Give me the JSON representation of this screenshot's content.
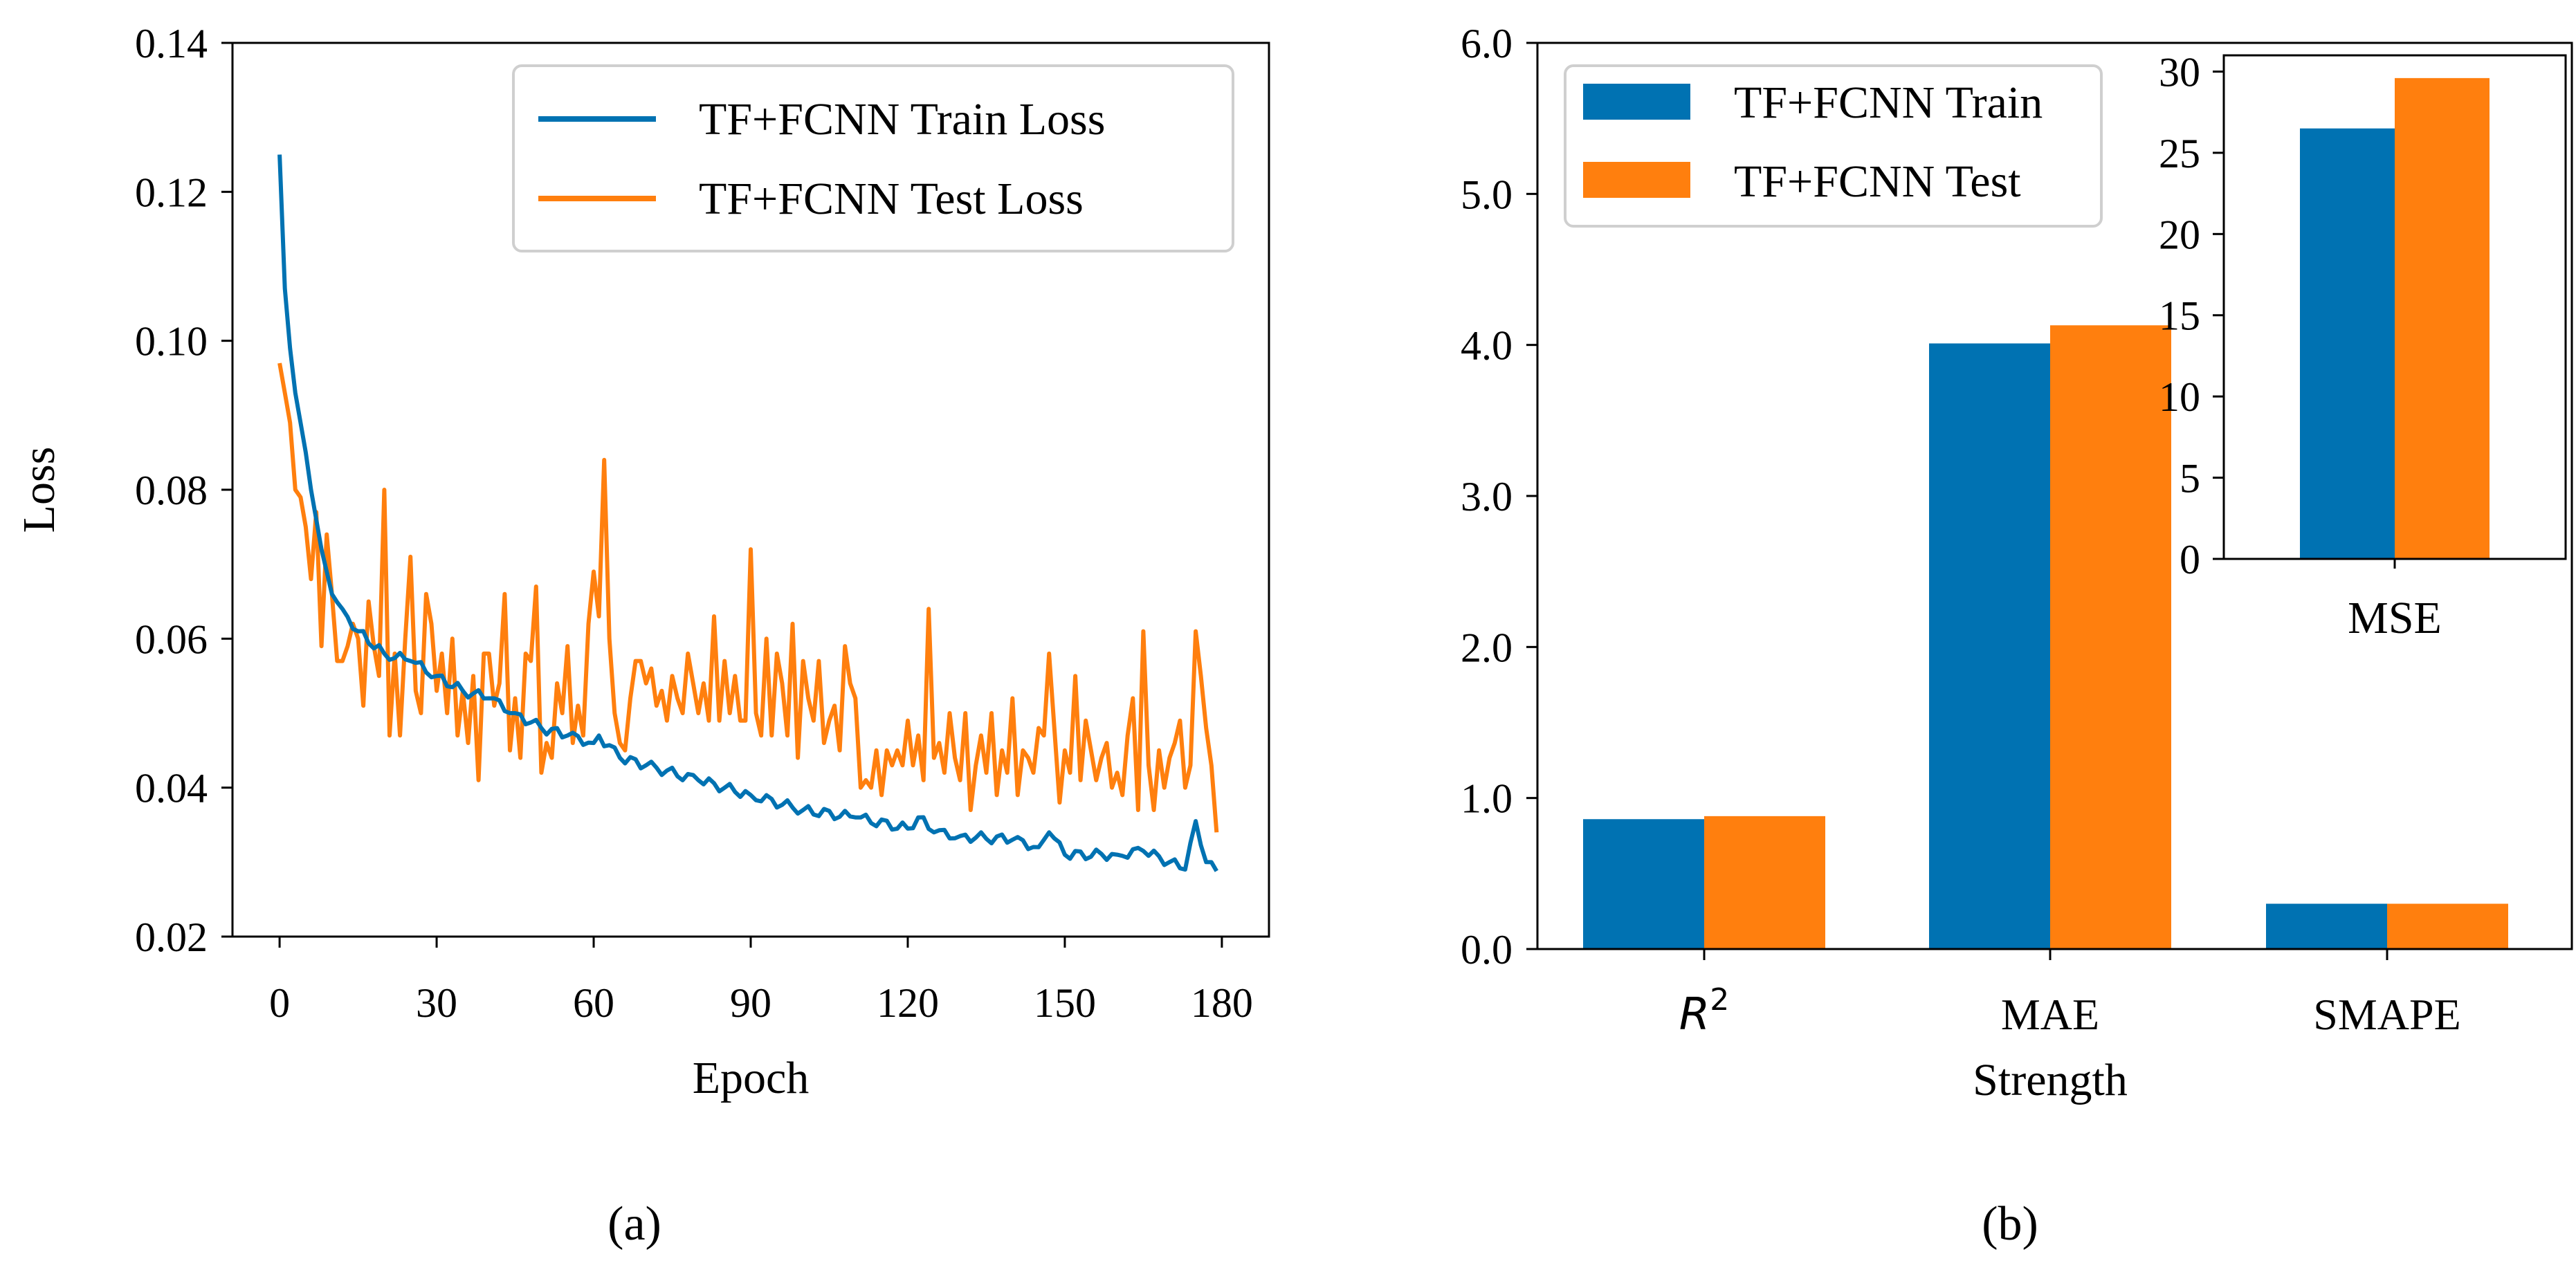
{
  "colors": {
    "train": "#0072B2",
    "test": "#FF7F0E"
  },
  "chart_data": [
    {
      "type": "line",
      "panel_label": "(a)",
      "xlabel": "Epoch",
      "ylabel": "Loss",
      "xlim": [
        -9,
        189
      ],
      "ylim": [
        0.02,
        0.14
      ],
      "xticks": [
        0,
        30,
        60,
        90,
        120,
        150,
        180
      ],
      "yticks": [
        0.02,
        0.04,
        0.06,
        0.08,
        0.1,
        0.12,
        0.14
      ],
      "yticklabels": [
        "0.02",
        "0.04",
        "0.06",
        "0.08",
        "0.10",
        "0.12",
        "0.14"
      ],
      "legend": {
        "location": "upper right"
      },
      "series": [
        {
          "name": "TF+FCNN Train Loss",
          "color": "#0072B2",
          "keypoints": [
            [
              0,
              0.125
            ],
            [
              1,
              0.107
            ],
            [
              2,
              0.099
            ],
            [
              3,
              0.093
            ],
            [
              4,
              0.089
            ],
            [
              5,
              0.085
            ],
            [
              6,
              0.08
            ],
            [
              7,
              0.076
            ],
            [
              8,
              0.072
            ],
            [
              9,
              0.069
            ],
            [
              10,
              0.066
            ],
            [
              12,
              0.064
            ],
            [
              15,
              0.061
            ],
            [
              20,
              0.058
            ],
            [
              25,
              0.057
            ],
            [
              30,
              0.055
            ],
            [
              35,
              0.053
            ],
            [
              40,
              0.052
            ],
            [
              45,
              0.05
            ],
            [
              50,
              0.048
            ],
            [
              55,
              0.047
            ],
            [
              60,
              0.046
            ],
            [
              61,
              0.047
            ],
            [
              65,
              0.044
            ],
            [
              70,
              0.043
            ],
            [
              80,
              0.041
            ],
            [
              90,
              0.039
            ],
            [
              100,
              0.037
            ],
            [
              110,
              0.036
            ],
            [
              120,
              0.0345
            ],
            [
              122,
              0.036
            ],
            [
              125,
              0.034
            ],
            [
              130,
              0.0335
            ],
            [
              140,
              0.033
            ],
            [
              145,
              0.032
            ],
            [
              147,
              0.034
            ],
            [
              150,
              0.031
            ],
            [
              160,
              0.031
            ],
            [
              165,
              0.0315
            ],
            [
              170,
              0.03
            ],
            [
              173,
              0.029
            ],
            [
              175,
              0.0355
            ],
            [
              177,
              0.03
            ],
            [
              179,
              0.0288
            ]
          ],
          "noise": 0.0007
        },
        {
          "name": "TF+FCNN Test Loss",
          "color": "#FF7F0E",
          "points": [
            [
              0,
              0.097
            ],
            [
              1,
              0.093
            ],
            [
              2,
              0.089
            ],
            [
              3,
              0.08
            ],
            [
              4,
              0.079
            ],
            [
              5,
              0.075
            ],
            [
              6,
              0.068
            ],
            [
              7,
              0.077
            ],
            [
              8,
              0.059
            ],
            [
              9,
              0.074
            ],
            [
              10,
              0.066
            ],
            [
              11,
              0.057
            ],
            [
              12,
              0.057
            ],
            [
              13,
              0.059
            ],
            [
              14,
              0.062
            ],
            [
              15,
              0.06
            ],
            [
              16,
              0.051
            ],
            [
              17,
              0.065
            ],
            [
              18,
              0.059
            ],
            [
              19,
              0.055
            ],
            [
              20,
              0.08
            ],
            [
              21,
              0.047
            ],
            [
              22,
              0.058
            ],
            [
              23,
              0.047
            ],
            [
              24,
              0.06
            ],
            [
              25,
              0.071
            ],
            [
              26,
              0.053
            ],
            [
              27,
              0.05
            ],
            [
              28,
              0.066
            ],
            [
              29,
              0.062
            ],
            [
              30,
              0.053
            ],
            [
              31,
              0.058
            ],
            [
              32,
              0.05
            ],
            [
              33,
              0.06
            ],
            [
              34,
              0.047
            ],
            [
              35,
              0.053
            ],
            [
              36,
              0.046
            ],
            [
              37,
              0.055
            ],
            [
              38,
              0.041
            ],
            [
              39,
              0.058
            ],
            [
              40,
              0.058
            ],
            [
              41,
              0.051
            ],
            [
              42,
              0.054
            ],
            [
              43,
              0.066
            ],
            [
              44,
              0.045
            ],
            [
              45,
              0.052
            ],
            [
              46,
              0.044
            ],
            [
              47,
              0.058
            ],
            [
              48,
              0.057
            ],
            [
              49,
              0.067
            ],
            [
              50,
              0.042
            ],
            [
              51,
              0.046
            ],
            [
              52,
              0.044
            ],
            [
              53,
              0.054
            ],
            [
              54,
              0.05
            ],
            [
              55,
              0.059
            ],
            [
              56,
              0.046
            ],
            [
              57,
              0.051
            ],
            [
              58,
              0.047
            ],
            [
              59,
              0.062
            ],
            [
              60,
              0.069
            ],
            [
              61,
              0.063
            ],
            [
              62,
              0.084
            ],
            [
              63,
              0.06
            ],
            [
              64,
              0.05
            ],
            [
              65,
              0.046
            ],
            [
              66,
              0.045
            ],
            [
              67,
              0.052
            ],
            [
              68,
              0.057
            ],
            [
              69,
              0.057
            ],
            [
              70,
              0.054
            ],
            [
              71,
              0.056
            ],
            [
              72,
              0.051
            ],
            [
              73,
              0.053
            ],
            [
              74,
              0.049
            ],
            [
              75,
              0.055
            ],
            [
              76,
              0.052
            ],
            [
              77,
              0.05
            ],
            [
              78,
              0.058
            ],
            [
              79,
              0.054
            ],
            [
              80,
              0.05
            ],
            [
              81,
              0.054
            ],
            [
              82,
              0.049
            ],
            [
              83,
              0.063
            ],
            [
              84,
              0.049
            ],
            [
              85,
              0.057
            ],
            [
              86,
              0.05
            ],
            [
              87,
              0.055
            ],
            [
              88,
              0.049
            ],
            [
              89,
              0.049
            ],
            [
              90,
              0.072
            ],
            [
              91,
              0.05
            ],
            [
              92,
              0.047
            ],
            [
              93,
              0.06
            ],
            [
              94,
              0.047
            ],
            [
              95,
              0.058
            ],
            [
              96,
              0.054
            ],
            [
              97,
              0.047
            ],
            [
              98,
              0.062
            ],
            [
              99,
              0.044
            ],
            [
              100,
              0.057
            ],
            [
              101,
              0.052
            ],
            [
              102,
              0.049
            ],
            [
              103,
              0.057
            ],
            [
              104,
              0.046
            ],
            [
              105,
              0.049
            ],
            [
              106,
              0.051
            ],
            [
              107,
              0.045
            ],
            [
              108,
              0.059
            ],
            [
              109,
              0.054
            ],
            [
              110,
              0.052
            ],
            [
              111,
              0.04
            ],
            [
              112,
              0.041
            ],
            [
              113,
              0.04
            ],
            [
              114,
              0.045
            ],
            [
              115,
              0.039
            ],
            [
              116,
              0.045
            ],
            [
              117,
              0.043
            ],
            [
              118,
              0.045
            ],
            [
              119,
              0.043
            ],
            [
              120,
              0.049
            ],
            [
              121,
              0.043
            ],
            [
              122,
              0.047
            ],
            [
              123,
              0.041
            ],
            [
              124,
              0.064
            ],
            [
              125,
              0.044
            ],
            [
              126,
              0.046
            ],
            [
              127,
              0.042
            ],
            [
              128,
              0.05
            ],
            [
              129,
              0.044
            ],
            [
              130,
              0.041
            ],
            [
              131,
              0.05
            ],
            [
              132,
              0.037
            ],
            [
              133,
              0.043
            ],
            [
              134,
              0.047
            ],
            [
              135,
              0.042
            ],
            [
              136,
              0.05
            ],
            [
              137,
              0.039
            ],
            [
              138,
              0.045
            ],
            [
              139,
              0.042
            ],
            [
              140,
              0.052
            ],
            [
              141,
              0.039
            ],
            [
              142,
              0.045
            ],
            [
              143,
              0.044
            ],
            [
              144,
              0.042
            ],
            [
              145,
              0.048
            ],
            [
              146,
              0.047
            ],
            [
              147,
              0.058
            ],
            [
              148,
              0.048
            ],
            [
              149,
              0.038
            ],
            [
              150,
              0.045
            ],
            [
              151,
              0.042
            ],
            [
              152,
              0.055
            ],
            [
              153,
              0.041
            ],
            [
              154,
              0.049
            ],
            [
              155,
              0.045
            ],
            [
              156,
              0.041
            ],
            [
              157,
              0.044
            ],
            [
              158,
              0.046
            ],
            [
              159,
              0.04
            ],
            [
              160,
              0.042
            ],
            [
              161,
              0.039
            ],
            [
              162,
              0.047
            ],
            [
              163,
              0.052
            ],
            [
              164,
              0.037
            ],
            [
              165,
              0.061
            ],
            [
              166,
              0.043
            ],
            [
              167,
              0.037
            ],
            [
              168,
              0.045
            ],
            [
              169,
              0.04
            ],
            [
              170,
              0.044
            ],
            [
              171,
              0.046
            ],
            [
              172,
              0.049
            ],
            [
              173,
              0.04
            ],
            [
              174,
              0.043
            ],
            [
              175,
              0.061
            ],
            [
              176,
              0.055
            ],
            [
              177,
              0.048
            ],
            [
              178,
              0.043
            ],
            [
              179,
              0.034
            ]
          ]
        }
      ]
    },
    {
      "type": "bar",
      "panel_label": "(b)",
      "xlabel": "Strength",
      "categories": [
        "R2",
        "MAE",
        "SMAPE"
      ],
      "ylim": [
        0,
        6
      ],
      "yticks": [
        0,
        1,
        2,
        3,
        4,
        5,
        6
      ],
      "yticklabels": [
        "0.0",
        "1.0",
        "2.0",
        "3.0",
        "4.0",
        "5.0",
        "6.0"
      ],
      "legend": {
        "location": "upper left"
      },
      "series": [
        {
          "name": "TF+FCNN Train",
          "color": "#0072B2",
          "values": [
            0.86,
            4.01,
            0.3
          ]
        },
        {
          "name": "TF+FCNN Test",
          "color": "#FF7F0E",
          "values": [
            0.88,
            4.13,
            0.3
          ]
        }
      ],
      "inset": {
        "type": "bar",
        "categories": [
          "MSE"
        ],
        "ylim": [
          0,
          31
        ],
        "yticks": [
          0,
          5,
          10,
          15,
          20,
          25,
          30
        ],
        "yticklabels": [
          "0",
          "5",
          "10",
          "15",
          "20",
          "25",
          "30"
        ],
        "series": [
          {
            "name": "TF+FCNN Train",
            "values": [
              26.5
            ]
          },
          {
            "name": "TF+FCNN Test",
            "values": [
              29.6
            ]
          }
        ]
      }
    }
  ]
}
